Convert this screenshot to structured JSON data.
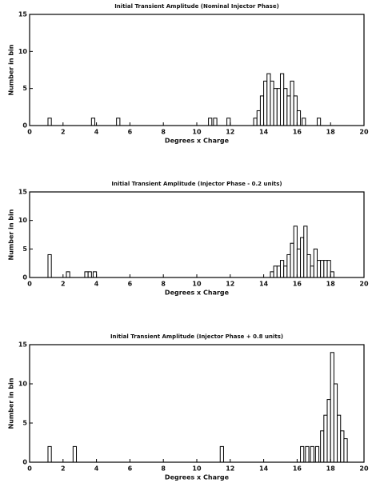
{
  "chart_data": [
    {
      "type": "bar",
      "title": "Initial Transient Amplitude (Nominal Injector Phase)",
      "xlabel": "Degrees x Charge",
      "ylabel": "Number in bin",
      "x": [
        1.2,
        3.8,
        5.3,
        10.8,
        11.1,
        11.9,
        13.5,
        13.7,
        13.9,
        14.1,
        14.3,
        14.5,
        14.7,
        14.9,
        15.1,
        15.3,
        15.5,
        15.7,
        15.9,
        16.1,
        16.4,
        17.3
      ],
      "values": [
        1,
        1,
        1,
        1,
        1,
        1,
        1,
        2,
        4,
        6,
        7,
        6,
        5,
        5,
        7,
        5,
        4,
        6,
        4,
        2,
        1,
        1
      ],
      "color": "#ffffff",
      "edgecolor": "#000000",
      "xlim": [
        0,
        20
      ],
      "xticks": [
        0,
        2,
        4,
        6,
        8,
        10,
        12,
        14,
        16,
        18,
        20
      ],
      "ylim": [
        0,
        15
      ],
      "yticks": [
        0,
        5,
        10,
        15
      ]
    },
    {
      "type": "bar",
      "title": "Initial Transient Amplitude (Injector Phase - 0.2 units)",
      "xlabel": "Degrees x Charge",
      "ylabel": "Number in bin",
      "x": [
        1.2,
        2.3,
        3.4,
        3.6,
        3.9,
        14.5,
        14.7,
        14.9,
        15.1,
        15.3,
        15.5,
        15.7,
        15.9,
        16.1,
        16.3,
        16.5,
        16.7,
        16.9,
        17.1,
        17.3,
        17.5,
        17.7,
        17.9,
        18.1
      ],
      "values": [
        4,
        1,
        1,
        1,
        1,
        1,
        2,
        2,
        3,
        2,
        4,
        6,
        9,
        5,
        7,
        9,
        4,
        2,
        5,
        3,
        3,
        3,
        3,
        1
      ],
      "color": "#ffffff",
      "edgecolor": "#000000",
      "xlim": [
        0,
        20
      ],
      "xticks": [
        0,
        2,
        4,
        6,
        8,
        10,
        12,
        14,
        16,
        18,
        20
      ],
      "ylim": [
        0,
        15
      ],
      "yticks": [
        0,
        5,
        10,
        15
      ]
    },
    {
      "type": "bar",
      "title": "Initial Transient Amplitude (Injector Phase + 0.8 units)",
      "xlabel": "Degrees x Charge",
      "ylabel": "Number in bin",
      "x": [
        1.2,
        2.7,
        11.5,
        16.3,
        16.6,
        16.9,
        17.2,
        17.5,
        17.7,
        17.9,
        18.1,
        18.3,
        18.5,
        18.7,
        18.9
      ],
      "values": [
        2,
        2,
        2,
        2,
        2,
        2,
        2,
        4,
        6,
        8,
        14,
        10,
        6,
        4,
        3
      ],
      "color": "#ffffff",
      "edgecolor": "#000000",
      "xlim": [
        0,
        20
      ],
      "xticks": [
        0,
        2,
        4,
        6,
        8,
        10,
        12,
        14,
        16,
        18,
        20
      ],
      "ylim": [
        0,
        15
      ],
      "yticks": [
        0,
        5,
        10,
        15
      ]
    }
  ]
}
